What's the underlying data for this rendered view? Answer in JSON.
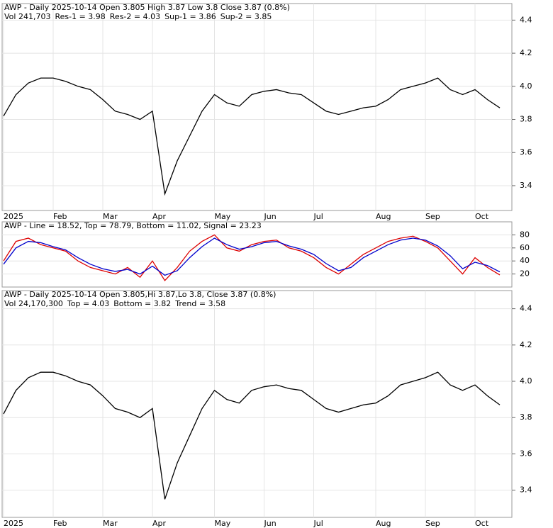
{
  "chart_data": [
    {
      "type": "line",
      "title": "AWP - Daily 2025-10-14 Open 3.805  High 3.87  Low 3.8  Close 3.87 (0.8%)",
      "annotations": [
        "Vol 241,703",
        "Res-1 = 3.98",
        "Res-2 = 4.03",
        "Sup-1 = 3.86",
        "Sup-2 = 3.85"
      ],
      "categories": [
        "2025",
        null,
        null,
        null,
        "Feb",
        null,
        null,
        null,
        "Mar",
        null,
        null,
        null,
        "Apr",
        null,
        null,
        null,
        null,
        "May",
        null,
        null,
        null,
        "Jun",
        null,
        null,
        null,
        "Jul",
        null,
        null,
        null,
        null,
        "Aug",
        null,
        null,
        null,
        "Sep",
        null,
        null,
        null,
        "Oct",
        null,
        null
      ],
      "series": [
        {
          "name": "AWP",
          "color": "#000000",
          "values": [
            3.82,
            3.95,
            4.02,
            4.05,
            4.05,
            4.03,
            4.0,
            3.98,
            3.92,
            3.85,
            3.83,
            3.8,
            3.85,
            3.35,
            3.55,
            3.7,
            3.85,
            3.95,
            3.9,
            3.88,
            3.95,
            3.97,
            3.98,
            3.96,
            3.95,
            3.9,
            3.85,
            3.83,
            3.85,
            3.87,
            3.88,
            3.92,
            3.98,
            4.0,
            4.02,
            4.05,
            3.98,
            3.95,
            3.98,
            3.92,
            3.87
          ]
        }
      ],
      "ylim": [
        3.25,
        4.5
      ],
      "yticks": [
        3.4,
        3.6,
        3.8,
        {
          "value": 4,
          "label": "4.0"
        },
        4.2,
        4.4
      ]
    },
    {
      "type": "line",
      "title": "AWP - Line = 18.52, Top = 78.79, Bottom = 11.02, Signal = 23.23",
      "series": [
        {
          "name": "Line",
          "color": "#dd0000",
          "values": [
            40,
            70,
            75,
            65,
            60,
            55,
            40,
            30,
            25,
            20,
            30,
            15,
            40,
            10,
            30,
            55,
            70,
            80,
            60,
            55,
            65,
            70,
            72,
            60,
            55,
            45,
            30,
            20,
            35,
            50,
            60,
            70,
            75,
            78,
            70,
            60,
            40,
            20,
            45,
            30,
            18.52
          ]
        },
        {
          "name": "Signal",
          "color": "#0000cc",
          "values": [
            35,
            60,
            70,
            68,
            62,
            57,
            45,
            35,
            28,
            24,
            27,
            20,
            32,
            18,
            25,
            45,
            62,
            75,
            65,
            58,
            62,
            68,
            70,
            63,
            58,
            50,
            36,
            25,
            30,
            45,
            55,
            65,
            72,
            75,
            72,
            63,
            48,
            28,
            38,
            33,
            23.23
          ]
        }
      ],
      "ylim": [
        0,
        100
      ],
      "yticks": [
        20,
        40,
        60,
        80
      ]
    },
    {
      "type": "line",
      "title": "AWP - Daily 2025-10-14 Open 3.805,Hi 3.87,Lo 3.8, Close 3.87 (0.8%)",
      "annotations": [
        "Vol 24,170,300",
        "Top = 4.03",
        "Bottom = 3.82",
        "Trend = 3.58"
      ],
      "categories": [
        "2025",
        null,
        null,
        null,
        "Feb",
        null,
        null,
        null,
        "Mar",
        null,
        null,
        null,
        "Apr",
        null,
        null,
        null,
        null,
        "May",
        null,
        null,
        null,
        "Jun",
        null,
        null,
        null,
        "Jul",
        null,
        null,
        null,
        null,
        "Aug",
        null,
        null,
        null,
        "Sep",
        null,
        null,
        null,
        "Oct",
        null,
        null
      ],
      "series": [
        {
          "name": "AWP",
          "color": "#000000",
          "values": [
            3.82,
            3.95,
            4.02,
            4.05,
            4.05,
            4.03,
            4.0,
            3.98,
            3.92,
            3.85,
            3.83,
            3.8,
            3.85,
            3.35,
            3.55,
            3.7,
            3.85,
            3.95,
            3.9,
            3.88,
            3.95,
            3.97,
            3.98,
            3.96,
            3.95,
            3.9,
            3.85,
            3.83,
            3.85,
            3.87,
            3.88,
            3.92,
            3.98,
            4.0,
            4.02,
            4.05,
            3.98,
            3.95,
            3.98,
            3.92,
            3.87
          ]
        }
      ],
      "ylim": [
        3.25,
        4.5
      ],
      "yticks": [
        3.4,
        3.6,
        3.8,
        {
          "value": 4,
          "label": "4.0"
        },
        4.2,
        4.4
      ]
    }
  ]
}
